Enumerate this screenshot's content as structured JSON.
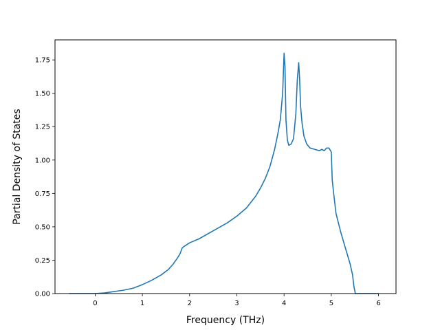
{
  "chart_data": {
    "type": "line",
    "title": "",
    "xlabel": "Frequency (THz)",
    "ylabel": "Partial Density of States",
    "xlim": [
      -0.85,
      6.37
    ],
    "ylim": [
      0.0,
      1.9
    ],
    "xticks": [
      0,
      1,
      2,
      3,
      4,
      5,
      6
    ],
    "yticks": [
      0.0,
      0.25,
      0.5,
      0.75,
      1.0,
      1.25,
      1.5,
      1.75
    ],
    "xtick_labels": [
      "0",
      "1",
      "2",
      "3",
      "4",
      "5",
      "6"
    ],
    "ytick_labels": [
      "0.00",
      "0.25",
      "0.50",
      "0.75",
      "1.00",
      "1.25",
      "1.50",
      "1.75"
    ],
    "grid": false,
    "legend": "none",
    "color": "#1f77b4",
    "series": [
      {
        "x": [
          -0.55,
          0.0,
          0.2,
          0.4,
          0.6,
          0.8,
          0.95,
          1.05,
          1.2,
          1.4,
          1.55,
          1.65,
          1.75,
          1.8,
          1.84,
          1.87,
          2.0,
          2.2,
          2.5,
          2.8,
          3.0,
          3.2,
          3.4,
          3.5,
          3.6,
          3.7,
          3.8,
          3.87,
          3.92,
          3.97,
          4.0,
          4.02,
          4.04,
          4.07,
          4.1,
          4.15,
          4.2,
          4.25,
          4.28,
          4.31,
          4.33,
          4.35,
          4.38,
          4.42,
          4.48,
          4.55,
          4.65,
          4.75,
          4.8,
          4.85,
          4.9,
          4.95,
          5.0,
          5.02,
          5.05,
          5.1,
          5.2,
          5.3,
          5.4,
          5.45,
          5.48,
          5.51,
          5.55,
          5.7,
          6.0
        ],
        "y": [
          0.0,
          0.0,
          0.005,
          0.015,
          0.025,
          0.04,
          0.06,
          0.075,
          0.1,
          0.14,
          0.18,
          0.22,
          0.27,
          0.3,
          0.34,
          0.35,
          0.38,
          0.41,
          0.47,
          0.53,
          0.58,
          0.64,
          0.73,
          0.79,
          0.86,
          0.95,
          1.08,
          1.2,
          1.3,
          1.5,
          1.8,
          1.7,
          1.3,
          1.15,
          1.11,
          1.12,
          1.16,
          1.35,
          1.6,
          1.73,
          1.6,
          1.4,
          1.28,
          1.18,
          1.12,
          1.09,
          1.08,
          1.07,
          1.08,
          1.07,
          1.09,
          1.09,
          1.06,
          0.85,
          0.75,
          0.6,
          0.46,
          0.34,
          0.22,
          0.14,
          0.05,
          0.0,
          0.0,
          0.0,
          0.0
        ]
      }
    ]
  }
}
